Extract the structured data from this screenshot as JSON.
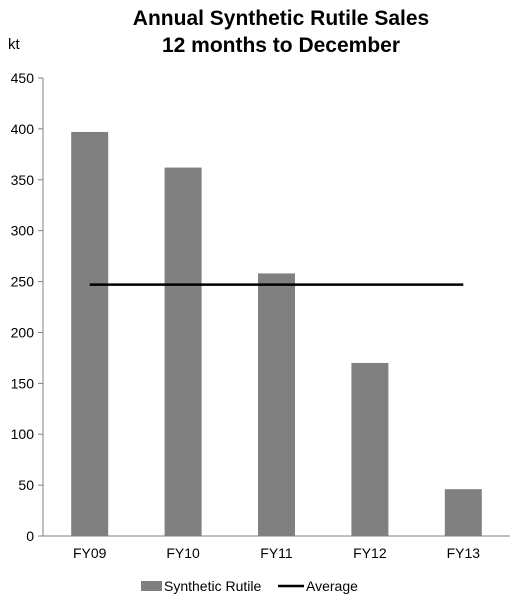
{
  "chart_data": {
    "type": "bar",
    "title_lines": [
      "Annual Synthetic Rutile Sales",
      "12 months to December"
    ],
    "ylabel": "kt",
    "xlabel": "",
    "categories": [
      "FY09",
      "FY10",
      "FY11",
      "FY12",
      "FY13"
    ],
    "series": [
      {
        "name": "Synthetic Rutile",
        "type": "bar",
        "color": "#808080",
        "values": [
          397,
          362,
          258,
          170,
          46
        ]
      },
      {
        "name": "Average",
        "type": "line",
        "color": "#000000",
        "values": [
          247,
          247,
          247,
          247,
          247
        ]
      }
    ],
    "ylim": [
      0,
      450
    ],
    "yticks": [
      0,
      50,
      100,
      150,
      200,
      250,
      300,
      350,
      400,
      450
    ],
    "grid": false,
    "legend_position": "bottom"
  }
}
